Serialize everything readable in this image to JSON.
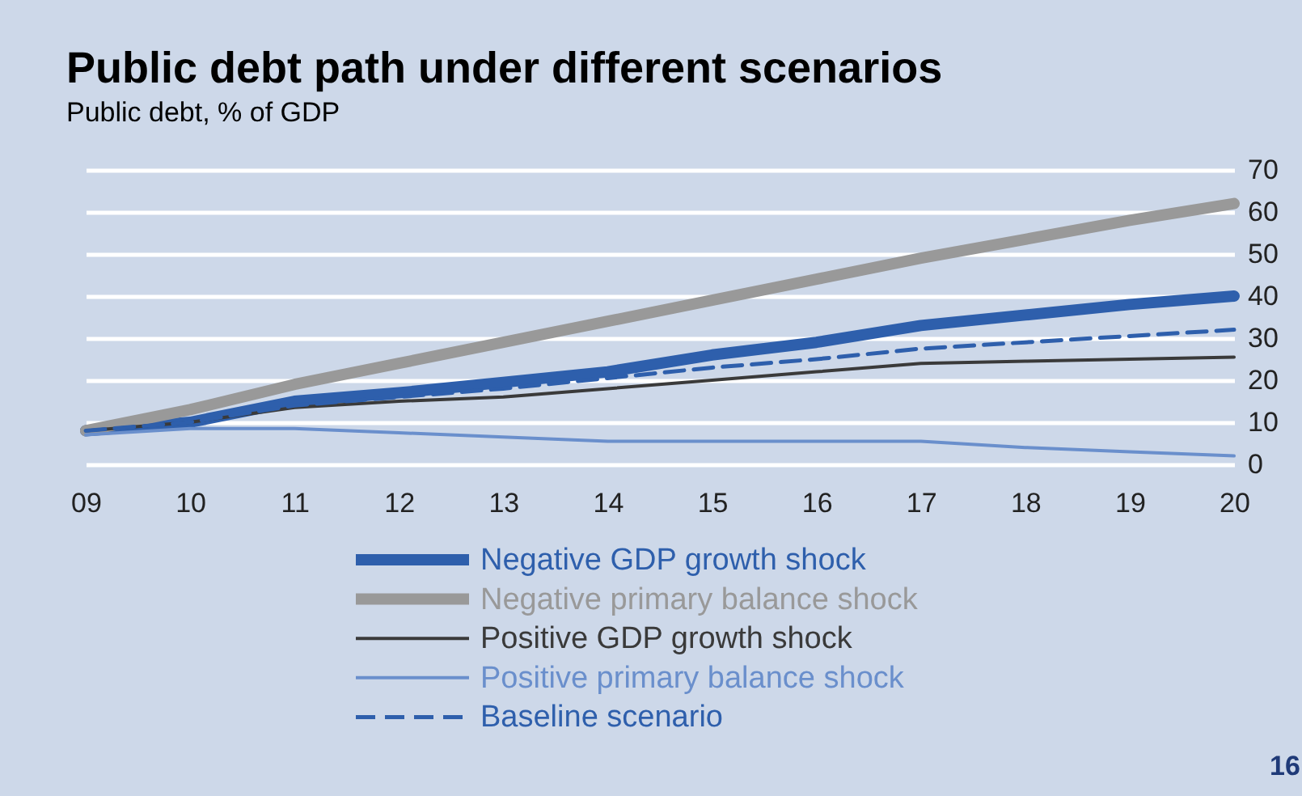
{
  "chart_data": {
    "type": "line",
    "title": "Public debt path under different scenarios",
    "subtitle": "Public debt, % of GDP",
    "categories": [
      "09",
      "10",
      "11",
      "12",
      "13",
      "14",
      "15",
      "16",
      "17",
      "18",
      "19",
      "20"
    ],
    "ylim": [
      0,
      70
    ],
    "yticks": [
      0,
      10,
      20,
      30,
      40,
      50,
      60,
      70
    ],
    "grid": "y",
    "legend": "bottom",
    "marker": "none",
    "series": [
      {
        "name": "Negative GDP growth shock",
        "color": "#2e5fac",
        "line_style": "solid",
        "values": [
          8,
          10,
          15,
          17,
          19.5,
          22,
          26,
          29,
          33,
          35.5,
          38,
          40
        ]
      },
      {
        "name": "Negative primary balance shock",
        "color": "#999999",
        "line_style": "solid",
        "values": [
          8,
          13,
          19,
          24,
          29,
          34,
          39,
          44,
          49,
          53.5,
          58,
          62
        ]
      },
      {
        "name": "Positive GDP growth shock",
        "color": "#3a3a3a",
        "line_style": "solid",
        "values": [
          8,
          10,
          13.5,
          15,
          16,
          18,
          20,
          22,
          24,
          24.5,
          25,
          25.5
        ]
      },
      {
        "name": "Positive primary balance shock",
        "color": "#6a8fcc",
        "line_style": "solid",
        "values": [
          7,
          8.5,
          8.5,
          7.5,
          6.5,
          5.5,
          5.5,
          5.5,
          5.5,
          4,
          3,
          2
        ]
      },
      {
        "name": "Baseline scenario",
        "color": "#2e5fac",
        "line_style": "dashed",
        "values": [
          8,
          10,
          14,
          16,
          18,
          20.5,
          23,
          25,
          27.5,
          29,
          30.5,
          32
        ]
      }
    ],
    "annotations": [
      "16"
    ]
  }
}
